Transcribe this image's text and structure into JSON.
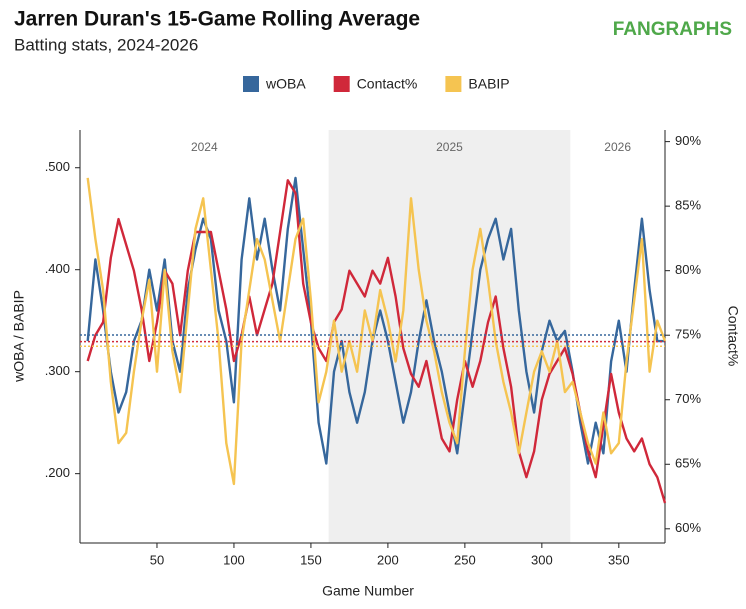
{
  "chart_data": {
    "type": "line",
    "title": "Jarren Duran's 15-Game Rolling Average",
    "subtitle": "Batting stats, 2024-2026",
    "brand": "FANGRAPHS",
    "x_label": "Game Number",
    "y_label": "wOBA / BABIP",
    "y2_label": "Contact%",
    "xlim": [
      0,
      380
    ],
    "xticks": [
      50,
      100,
      150,
      200,
      250,
      300,
      350
    ],
    "ylim": [
      0.132,
      0.537
    ],
    "yticks": [
      {
        "value": 0.2,
        "label": ".200"
      },
      {
        "value": 0.3,
        "label": ".300"
      },
      {
        "value": 0.4,
        "label": ".400"
      },
      {
        "value": 0.5,
        "label": ".500"
      }
    ],
    "y2lim": [
      58.9,
      90.9
    ],
    "y2ticks": [
      {
        "value": 60,
        "label": "60%"
      },
      {
        "value": 65,
        "label": "65%"
      },
      {
        "value": 70,
        "label": "70%"
      },
      {
        "value": 75,
        "label": "75%"
      },
      {
        "value": 80,
        "label": "80%"
      },
      {
        "value": 85,
        "label": "85%"
      },
      {
        "value": 90,
        "label": "90%"
      }
    ],
    "seasons": [
      {
        "label": "2024",
        "start": 0,
        "end": 161.5,
        "shaded": false
      },
      {
        "label": "2025",
        "start": 161.5,
        "end": 318.5,
        "shaded": true
      },
      {
        "label": "2026",
        "start": 318.5,
        "end": 380,
        "shaded": false
      }
    ],
    "x": [
      5,
      10,
      15,
      20,
      25,
      30,
      35,
      40,
      45,
      50,
      55,
      60,
      65,
      70,
      75,
      80,
      85,
      90,
      95,
      100,
      105,
      110,
      115,
      120,
      125,
      130,
      135,
      140,
      145,
      150,
      155,
      160,
      165,
      170,
      175,
      180,
      185,
      190,
      195,
      200,
      205,
      210,
      215,
      220,
      225,
      230,
      235,
      240,
      245,
      250,
      255,
      260,
      265,
      270,
      275,
      280,
      285,
      290,
      295,
      300,
      305,
      310,
      315,
      320,
      325,
      330,
      335,
      340,
      345,
      350,
      355,
      360,
      365,
      370,
      375,
      380
    ],
    "series": [
      {
        "name": "wOBA",
        "color": "#36679c",
        "average": 0.336,
        "values": [
          0.33,
          0.41,
          0.36,
          0.3,
          0.26,
          0.28,
          0.33,
          0.35,
          0.4,
          0.36,
          0.41,
          0.33,
          0.3,
          0.38,
          0.42,
          0.45,
          0.43,
          0.36,
          0.33,
          0.27,
          0.41,
          0.47,
          0.41,
          0.45,
          0.4,
          0.36,
          0.44,
          0.49,
          0.42,
          0.35,
          0.25,
          0.21,
          0.3,
          0.33,
          0.28,
          0.25,
          0.28,
          0.33,
          0.36,
          0.33,
          0.29,
          0.25,
          0.28,
          0.33,
          0.37,
          0.33,
          0.3,
          0.26,
          0.22,
          0.28,
          0.34,
          0.4,
          0.43,
          0.45,
          0.41,
          0.44,
          0.36,
          0.3,
          0.26,
          0.32,
          0.35,
          0.33,
          0.34,
          0.3,
          0.25,
          0.21,
          0.25,
          0.22,
          0.31,
          0.35,
          0.3,
          0.38,
          0.45,
          0.38,
          0.33,
          0.33
        ]
      },
      {
        "name": "Contact%",
        "color": "#d0283a",
        "axis": "y2",
        "average": 74.5,
        "values": [
          73,
          75,
          76,
          81,
          84,
          82,
          80,
          77,
          73,
          76,
          80,
          79,
          75,
          80,
          83,
          83,
          83,
          80,
          77,
          73,
          75,
          78,
          75,
          77,
          79,
          83,
          87,
          86,
          79,
          76,
          74,
          73,
          76,
          77,
          80,
          79,
          78,
          80,
          79,
          81,
          78,
          74,
          72,
          71,
          73,
          70,
          67,
          66,
          70,
          73,
          71,
          73,
          76,
          78,
          74,
          71,
          66,
          64,
          66,
          70,
          72,
          73,
          74,
          72,
          69,
          66,
          64,
          68,
          72,
          69,
          67,
          66,
          67,
          65,
          64,
          62
        ]
      },
      {
        "name": "BABIP",
        "color": "#f5c451",
        "average": 0.325,
        "values": [
          0.49,
          0.43,
          0.38,
          0.29,
          0.23,
          0.24,
          0.3,
          0.35,
          0.39,
          0.3,
          0.4,
          0.32,
          0.28,
          0.36,
          0.44,
          0.47,
          0.4,
          0.33,
          0.23,
          0.19,
          0.33,
          0.38,
          0.43,
          0.41,
          0.37,
          0.33,
          0.38,
          0.43,
          0.45,
          0.37,
          0.27,
          0.3,
          0.35,
          0.3,
          0.33,
          0.3,
          0.36,
          0.33,
          0.38,
          0.35,
          0.31,
          0.36,
          0.47,
          0.4,
          0.35,
          0.32,
          0.28,
          0.25,
          0.23,
          0.32,
          0.4,
          0.44,
          0.39,
          0.33,
          0.29,
          0.26,
          0.22,
          0.26,
          0.3,
          0.32,
          0.3,
          0.33,
          0.28,
          0.29,
          0.26,
          0.23,
          0.21,
          0.26,
          0.22,
          0.23,
          0.31,
          0.37,
          0.43,
          0.3,
          0.35,
          0.33
        ]
      }
    ]
  }
}
